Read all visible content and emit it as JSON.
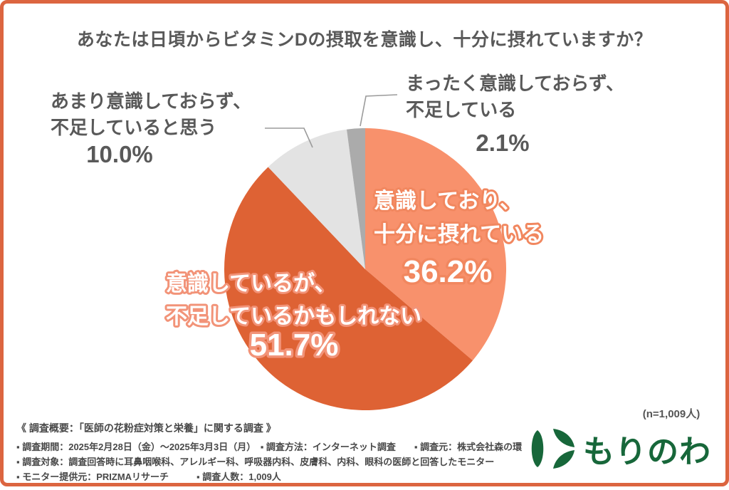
{
  "title": "あなたは日頃からビタミンDの摂取を意識し、十分に摂れていますか？",
  "sample_note": "(n=1,009人)",
  "chart_data": {
    "type": "pie",
    "title": "あなたは日頃からビタミンDの摂取を意識し、十分に摂れていますか？",
    "start_angle": "12時方向",
    "direction": "clockwise",
    "n_label": "(n=1,009人)",
    "slices": [
      {
        "label": "意識しており、十分に摂れている",
        "label_lines": [
          "意識しており、",
          "十分に摂れている"
        ],
        "value": 36.2,
        "pct_label": "36.2%",
        "color": "#F8916C"
      },
      {
        "label": "意識しているが、不足しているかもしれない",
        "label_lines": [
          "意識しているが、",
          "不足しているかもしれない"
        ],
        "value": 51.7,
        "pct_label": "51.7%",
        "color": "#DE6234"
      },
      {
        "label": "あまり意識しておらず、不足していると思う",
        "label_lines": [
          "あまり意識しておらず、",
          "不足していると思う"
        ],
        "value": 10.0,
        "pct_label": "10.0%",
        "color": "#E3E3E3"
      },
      {
        "label": "まったく意識しておらず、不足している",
        "label_lines": [
          "まったく意識しておらず、",
          "不足している"
        ],
        "value": 2.1,
        "pct_label": "2.1%",
        "color": "#ABABAB"
      }
    ]
  },
  "survey": {
    "heading": "《 調査概要：「医師の花粉症対策と栄養」に関する調査 》",
    "lines": [
      "▪ 調査期間：2025年2月28日（金）〜2025年3月3日（月）　▪ 調査方法：インターネット調査　　▪ 調査元：株式会社森の環",
      "▪ 調査対象：調査回答時に耳鼻咽喉科、アレルギー科、呼吸器内科、皮膚科、内科、眼科の医師と回答したモニター",
      "▪ モニター提供元：PRIZMAリサーチ　　　▪ 調査人数：1,009人"
    ]
  },
  "logo": {
    "text": "もりのわ",
    "color": "#17673A"
  },
  "colors": {
    "card_border": "#DC6540",
    "label_text": "#595959",
    "slice1_outline": "#F1875F",
    "slice2_outline": "#F29378",
    "leader_line": "#9B9B9B",
    "logo_green": "#17673A"
  }
}
